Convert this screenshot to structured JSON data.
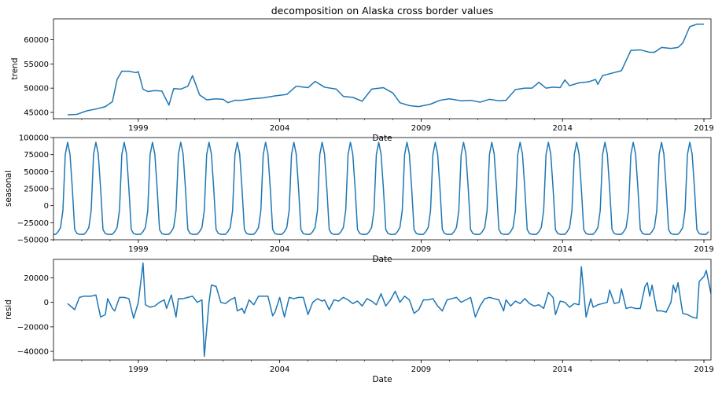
{
  "figure": {
    "title": "decomposition on Alaska cross border values",
    "line_color": "#1f77b4"
  },
  "chart_data": [
    {
      "type": "line",
      "name": "trend",
      "xlabel": "Date",
      "ylabel": "trend",
      "xlim": [
        "1996-01",
        "2019-04"
      ],
      "ylim": [
        43700,
        64300
      ],
      "xticks": [
        "1999",
        "2004",
        "2009",
        "2014",
        "2019"
      ],
      "yticks": [
        45000,
        50000,
        55000,
        60000
      ],
      "ytick_labels": [
        "45000",
        "50000",
        "55000",
        "60000"
      ],
      "points": [
        [
          "1996-07",
          44500
        ],
        [
          "1996-11",
          44600
        ],
        [
          "1997-03",
          45300
        ],
        [
          "1997-08",
          45800
        ],
        [
          "1997-11",
          46200
        ],
        [
          "1998-02",
          47200
        ],
        [
          "1998-04",
          51800
        ],
        [
          "1998-06",
          53500
        ],
        [
          "1998-09",
          53500
        ],
        [
          "1998-12",
          53200
        ],
        [
          "1999-01",
          53400
        ],
        [
          "1999-03",
          49800
        ],
        [
          "1999-05",
          49300
        ],
        [
          "1999-08",
          49500
        ],
        [
          "1999-11",
          49400
        ],
        [
          "2000-02",
          46500
        ],
        [
          "2000-04",
          49900
        ],
        [
          "2000-07",
          49800
        ],
        [
          "2000-10",
          50400
        ],
        [
          "2000-12",
          52600
        ],
        [
          "2001-03",
          48600
        ],
        [
          "2001-06",
          47600
        ],
        [
          "2001-10",
          47800
        ],
        [
          "2002-01",
          47700
        ],
        [
          "2002-03",
          47000
        ],
        [
          "2002-06",
          47500
        ],
        [
          "2002-09",
          47500
        ],
        [
          "2003-01",
          47800
        ],
        [
          "2003-06",
          48000
        ],
        [
          "2003-11",
          48400
        ],
        [
          "2004-04",
          48700
        ],
        [
          "2004-08",
          50400
        ],
        [
          "2005-01",
          50100
        ],
        [
          "2005-04",
          51400
        ],
        [
          "2005-08",
          50200
        ],
        [
          "2006-01",
          49800
        ],
        [
          "2006-04",
          48300
        ],
        [
          "2006-08",
          48100
        ],
        [
          "2006-12",
          47300
        ],
        [
          "2007-04",
          49800
        ],
        [
          "2007-09",
          50100
        ],
        [
          "2008-01",
          49000
        ],
        [
          "2008-04",
          47000
        ],
        [
          "2008-08",
          46400
        ],
        [
          "2008-12",
          46200
        ],
        [
          "2009-05",
          46700
        ],
        [
          "2009-09",
          47500
        ],
        [
          "2010-01",
          47800
        ],
        [
          "2010-06",
          47400
        ],
        [
          "2010-10",
          47500
        ],
        [
          "2011-02",
          47100
        ],
        [
          "2011-06",
          47700
        ],
        [
          "2011-10",
          47400
        ],
        [
          "2012-01",
          47500
        ],
        [
          "2012-05",
          49700
        ],
        [
          "2012-09",
          50000
        ],
        [
          "2012-12",
          50000
        ],
        [
          "2013-03",
          51200
        ],
        [
          "2013-06",
          50000
        ],
        [
          "2013-09",
          50200
        ],
        [
          "2013-12",
          50100
        ],
        [
          "2014-02",
          51700
        ],
        [
          "2014-04",
          50500
        ],
        [
          "2014-08",
          51100
        ],
        [
          "2014-12",
          51300
        ],
        [
          "2015-03",
          51800
        ],
        [
          "2015-04",
          50800
        ],
        [
          "2015-06",
          52600
        ],
        [
          "2015-10",
          53100
        ],
        [
          "2016-02",
          53600
        ],
        [
          "2016-06",
          57800
        ],
        [
          "2016-10",
          57900
        ],
        [
          "2017-02",
          57400
        ],
        [
          "2017-04",
          57400
        ],
        [
          "2017-07",
          58400
        ],
        [
          "2017-11",
          58200
        ],
        [
          "2018-02",
          58400
        ],
        [
          "2018-04",
          59300
        ],
        [
          "2018-07",
          62700
        ],
        [
          "2018-10",
          63200
        ],
        [
          "2019-01",
          63200
        ]
      ]
    },
    {
      "type": "line",
      "name": "seasonal",
      "xlabel": "Date",
      "ylabel": "seasonal",
      "xlim": [
        "1996-01",
        "2019-04"
      ],
      "ylim": [
        -50000,
        100000
      ],
      "xticks": [
        "1999",
        "2004",
        "2009",
        "2014",
        "2019"
      ],
      "yticks": [
        -50000,
        -25000,
        0,
        25000,
        50000,
        75000,
        100000
      ],
      "ytick_labels": [
        "−50000",
        "−25000",
        "0",
        "25000",
        "50000",
        "75000",
        "100000"
      ],
      "start": "1996-01",
      "end": "2019-03",
      "monthly_pattern": [
        -42000,
        -42000,
        -38000,
        -32000,
        -7000,
        75000,
        93000,
        76000,
        25000,
        -35000,
        -41000,
        -42000
      ]
    },
    {
      "type": "line",
      "name": "resid",
      "xlabel": "Date",
      "ylabel": "resid",
      "xlim": [
        "1996-01",
        "2019-04"
      ],
      "ylim": [
        -47000,
        35000
      ],
      "xticks": [
        "1999",
        "2004",
        "2009",
        "2014",
        "2019"
      ],
      "yticks": [
        -40000,
        -20000,
        0,
        20000
      ],
      "ytick_labels": [
        "−40000",
        "−20000",
        "0",
        "20000"
      ],
      "points": [
        [
          "1996-07",
          -1000
        ],
        [
          "1996-10",
          -6000
        ],
        [
          "1996-12",
          4000
        ],
        [
          "1997-02",
          5000
        ],
        [
          "1997-05",
          5000
        ],
        [
          "1997-07",
          6000
        ],
        [
          "1997-09",
          -12000
        ],
        [
          "1997-11",
          -10000
        ],
        [
          "1997-12",
          3000
        ],
        [
          "1998-02",
          -5000
        ],
        [
          "1998-03",
          -7000
        ],
        [
          "1998-05",
          4000
        ],
        [
          "1998-07",
          4000
        ],
        [
          "1998-09",
          3000
        ],
        [
          "1998-11",
          -13000
        ],
        [
          "1999-01",
          0
        ],
        [
          "1999-03",
          32000
        ],
        [
          "1999-04",
          -2000
        ],
        [
          "1999-06",
          -4000
        ],
        [
          "1999-08",
          -3000
        ],
        [
          "1999-10",
          0
        ],
        [
          "1999-12",
          2000
        ],
        [
          "2000-01",
          -5000
        ],
        [
          "2000-03",
          6000
        ],
        [
          "2000-05",
          -12000
        ],
        [
          "2000-06",
          3000
        ],
        [
          "2000-08",
          3000
        ],
        [
          "2000-10",
          4000
        ],
        [
          "2000-12",
          5000
        ],
        [
          "2001-02",
          0
        ],
        [
          "2001-04",
          2000
        ],
        [
          "2001-05",
          -44000
        ],
        [
          "2001-07",
          0
        ],
        [
          "2001-08",
          14000
        ],
        [
          "2001-10",
          13000
        ],
        [
          "2001-12",
          0
        ],
        [
          "2002-02",
          -1000
        ],
        [
          "2002-04",
          2000
        ],
        [
          "2002-06",
          4000
        ],
        [
          "2002-07",
          -7000
        ],
        [
          "2002-09",
          -5000
        ],
        [
          "2002-10",
          -9000
        ],
        [
          "2002-12",
          2000
        ],
        [
          "2003-02",
          -2000
        ],
        [
          "2003-04",
          5000
        ],
        [
          "2003-06",
          5000
        ],
        [
          "2003-08",
          5000
        ],
        [
          "2003-10",
          -11000
        ],
        [
          "2003-11",
          -8000
        ],
        [
          "2004-01",
          4000
        ],
        [
          "2004-03",
          -12000
        ],
        [
          "2004-05",
          4000
        ],
        [
          "2004-07",
          3000
        ],
        [
          "2004-09",
          4000
        ],
        [
          "2004-11",
          4000
        ],
        [
          "2005-01",
          -10000
        ],
        [
          "2005-03",
          0
        ],
        [
          "2005-05",
          3000
        ],
        [
          "2005-07",
          1000
        ],
        [
          "2005-08",
          2000
        ],
        [
          "2005-10",
          -6000
        ],
        [
          "2005-12",
          2000
        ],
        [
          "2006-02",
          1000
        ],
        [
          "2006-04",
          4000
        ],
        [
          "2006-06",
          2000
        ],
        [
          "2006-08",
          -1000
        ],
        [
          "2006-10",
          1000
        ],
        [
          "2006-12",
          -3000
        ],
        [
          "2007-02",
          3000
        ],
        [
          "2007-04",
          1000
        ],
        [
          "2007-06",
          -2000
        ],
        [
          "2007-08",
          7000
        ],
        [
          "2007-10",
          -3000
        ],
        [
          "2007-12",
          2000
        ],
        [
          "2008-02",
          9000
        ],
        [
          "2008-04",
          0
        ],
        [
          "2008-06",
          5000
        ],
        [
          "2008-08",
          2000
        ],
        [
          "2008-10",
          -9000
        ],
        [
          "2008-12",
          -6000
        ],
        [
          "2009-02",
          2000
        ],
        [
          "2009-04",
          2000
        ],
        [
          "2009-06",
          3000
        ],
        [
          "2009-08",
          -3000
        ],
        [
          "2009-10",
          -7000
        ],
        [
          "2009-12",
          2000
        ],
        [
          "2010-02",
          3000
        ],
        [
          "2010-04",
          4000
        ],
        [
          "2010-06",
          0
        ],
        [
          "2010-08",
          2000
        ],
        [
          "2010-10",
          4000
        ],
        [
          "2010-12",
          -12000
        ],
        [
          "2011-02",
          -3000
        ],
        [
          "2011-04",
          3000
        ],
        [
          "2011-06",
          4000
        ],
        [
          "2011-08",
          3000
        ],
        [
          "2011-10",
          2000
        ],
        [
          "2011-12",
          -7000
        ],
        [
          "2012-01",
          2000
        ],
        [
          "2012-03",
          -3000
        ],
        [
          "2012-05",
          1000
        ],
        [
          "2012-07",
          -1000
        ],
        [
          "2012-09",
          3000
        ],
        [
          "2012-11",
          -1000
        ],
        [
          "2013-01",
          -3000
        ],
        [
          "2013-03",
          -2000
        ],
        [
          "2013-05",
          -5000
        ],
        [
          "2013-07",
          8000
        ],
        [
          "2013-09",
          4000
        ],
        [
          "2013-10",
          -10000
        ],
        [
          "2013-12",
          1000
        ],
        [
          "2014-02",
          0
        ],
        [
          "2014-04",
          -4000
        ],
        [
          "2014-06",
          -1000
        ],
        [
          "2014-08",
          -2000
        ],
        [
          "2014-09",
          29000
        ],
        [
          "2014-11",
          -12000
        ],
        [
          "2015-01",
          3000
        ],
        [
          "2015-02",
          -4000
        ],
        [
          "2015-04",
          -2000
        ],
        [
          "2015-06",
          -1000
        ],
        [
          "2015-08",
          0
        ],
        [
          "2015-09",
          10000
        ],
        [
          "2015-11",
          -1000
        ],
        [
          "2016-01",
          0
        ],
        [
          "2016-02",
          11000
        ],
        [
          "2016-04",
          -5000
        ],
        [
          "2016-06",
          -4000
        ],
        [
          "2016-08",
          -5000
        ],
        [
          "2016-10",
          -5000
        ],
        [
          "2016-12",
          13000
        ],
        [
          "2017-01",
          16000
        ],
        [
          "2017-02",
          5000
        ],
        [
          "2017-03",
          14000
        ],
        [
          "2017-05",
          -7000
        ],
        [
          "2017-07",
          -7000
        ],
        [
          "2017-09",
          -8000
        ],
        [
          "2017-11",
          0
        ],
        [
          "2017-12",
          14000
        ],
        [
          "2018-01",
          8000
        ],
        [
          "2018-02",
          16000
        ],
        [
          "2018-04",
          -9000
        ],
        [
          "2018-06",
          -10000
        ],
        [
          "2018-08",
          -12000
        ],
        [
          "2018-10",
          -13000
        ],
        [
          "2018-11",
          17000
        ],
        [
          "2019-01",
          21000
        ],
        [
          "2019-02",
          26000
        ],
        [
          "2019-04",
          7000
        ]
      ]
    }
  ]
}
